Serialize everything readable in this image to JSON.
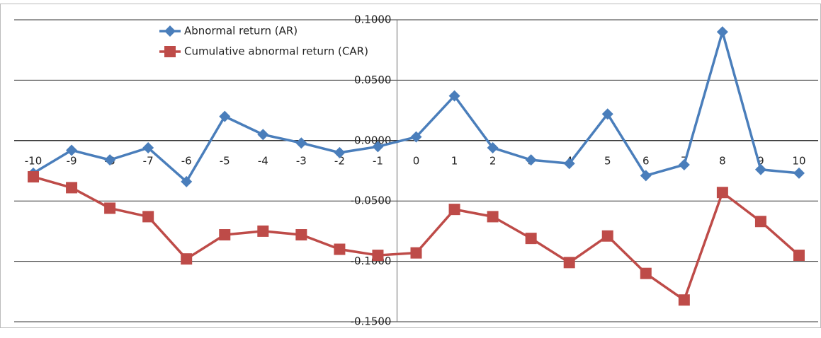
{
  "chart_data": {
    "type": "line",
    "categories": [
      "-10",
      "-9",
      "-8",
      "-7",
      "-6",
      "-5",
      "-4",
      "-3",
      "-2",
      "-1",
      "0",
      "1",
      "2",
      "3",
      "4",
      "5",
      "6",
      "7",
      "8",
      "9",
      "10"
    ],
    "series": [
      {
        "name": "Abnormal return (AR)",
        "color": "#4a7ebb",
        "marker": "diamond",
        "values": [
          -0.027,
          -0.008,
          -0.016,
          -0.006,
          -0.034,
          0.02,
          0.005,
          -0.002,
          -0.01,
          -0.005,
          0.003,
          0.037,
          -0.006,
          -0.016,
          -0.019,
          0.022,
          -0.029,
          -0.02,
          0.09,
          -0.024,
          -0.027
        ]
      },
      {
        "name": "Cumulative abnormal return (CAR)",
        "color": "#be4b48",
        "marker": "square",
        "values": [
          -0.03,
          -0.039,
          -0.056,
          -0.063,
          -0.098,
          -0.078,
          -0.075,
          -0.078,
          -0.09,
          -0.095,
          -0.093,
          -0.057,
          -0.063,
          -0.081,
          -0.101,
          -0.079,
          -0.11,
          -0.132,
          -0.043,
          -0.067,
          -0.095
        ]
      }
    ],
    "ylim": [
      -0.15,
      0.1
    ],
    "yticks": [
      {
        "value": -0.15,
        "label": "-0.1500"
      },
      {
        "value": -0.1,
        "label": "-0.1000"
      },
      {
        "value": -0.05,
        "label": "-0.0500"
      },
      {
        "value": 0,
        "label": "0.0000"
      },
      {
        "value": 0.05,
        "label": "0.0500"
      },
      {
        "value": 0.1,
        "label": "0.1000"
      }
    ],
    "grid": true,
    "legend": "top-left"
  }
}
